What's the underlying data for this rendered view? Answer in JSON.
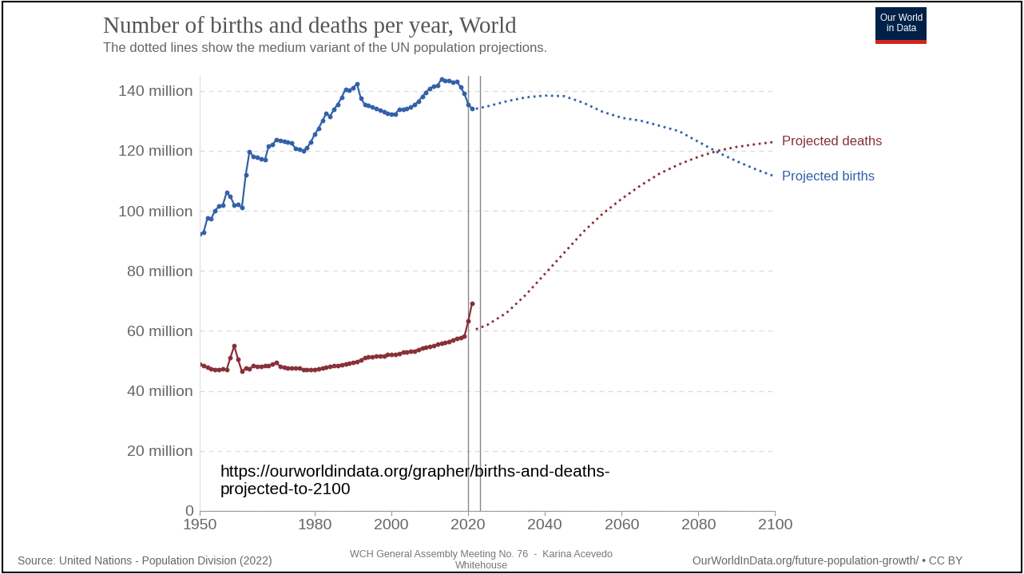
{
  "chart_data": {
    "type": "line",
    "title": "Number of births and deaths per year, World",
    "subtitle": "The dotted lines show the medium variant of the UN population projections.",
    "logo": "Our World\nin Data",
    "url_note": "https://ourworldindata.org/grapher/births-and-deaths-\nprojected-to-2100",
    "source": "Source: United Nations - Population Division (2022)",
    "credit": "WCH General Assembly Meeting No. 76  -  Karina Acevedo\nWhitehouse",
    "license": "OurWorldInData.org/future-population-growth/ • CC BY",
    "xlim": [
      1950,
      2100
    ],
    "xticks": [
      1950,
      1980,
      2000,
      2020,
      2040,
      2060,
      2080,
      2100
    ],
    "ylim": [
      0,
      145
    ],
    "yticks": [
      0,
      {
        "value": 20,
        "label": "20 million"
      },
      {
        "value": 40,
        "label": "40 million"
      },
      {
        "value": 60,
        "label": "60 million"
      },
      {
        "value": 80,
        "label": "80 million"
      },
      {
        "value": 100,
        "label": "100 million"
      },
      {
        "value": 120,
        "label": "120 million"
      },
      {
        "value": 140,
        "label": "140 million"
      }
    ],
    "grid": true,
    "reference_lines": [
      2020,
      2023
    ],
    "series": [
      {
        "color": "#3360a9",
        "line_style": "solid",
        "marker": "o",
        "x": [
          1950,
          1951,
          1952,
          1953,
          1954,
          1955,
          1956,
          1957,
          1958,
          1959,
          1960,
          1961,
          1962,
          1963,
          1964,
          1965,
          1966,
          1967,
          1968,
          1969,
          1970,
          1971,
          1972,
          1973,
          1974,
          1975,
          1976,
          1977,
          1978,
          1979,
          1980,
          1981,
          1982,
          1983,
          1984,
          1985,
          1986,
          1987,
          1988,
          1989,
          1990,
          1991,
          1992,
          1993,
          1994,
          1995,
          1996,
          1997,
          1998,
          1999,
          2000,
          2001,
          2002,
          2003,
          2004,
          2005,
          2006,
          2007,
          2008,
          2009,
          2010,
          2011,
          2012,
          2013,
          2014,
          2015,
          2016,
          2017,
          2018,
          2019,
          2020,
          2021
        ],
        "values": [
          92.2,
          92.8,
          97.5,
          97.4,
          100,
          101.5,
          101.8,
          106,
          104.8,
          102,
          102.2,
          101,
          112,
          119.8,
          118,
          117.8,
          117.3,
          117,
          121.6,
          122,
          123.8,
          123.5,
          123.2,
          123,
          122.5,
          120.7,
          120.6,
          120,
          121,
          123,
          125.5,
          127.5,
          130,
          132.5,
          131.5,
          133.8,
          135.5,
          137.8,
          140.5,
          140.2,
          141,
          142.3,
          137.5,
          135.5,
          135,
          134.5,
          134,
          133.5,
          133,
          132.5,
          132.3,
          132.3,
          133.8,
          133.8,
          134,
          134.5,
          135.3,
          136.5,
          138,
          139.5,
          140.8,
          141.5,
          141.8,
          143.8,
          143.3,
          143.5,
          142.8,
          143,
          141.3,
          139,
          135.5,
          134
        ]
      },
      {
        "color": "#883039",
        "line_style": "solid",
        "marker": "o",
        "x": [
          1950,
          1951,
          1952,
          1953,
          1954,
          1955,
          1956,
          1957,
          1958,
          1959,
          1960,
          1961,
          1962,
          1963,
          1964,
          1965,
          1966,
          1967,
          1968,
          1969,
          1970,
          1971,
          1972,
          1973,
          1974,
          1975,
          1976,
          1977,
          1978,
          1979,
          1980,
          1981,
          1982,
          1983,
          1984,
          1985,
          1986,
          1987,
          1988,
          1989,
          1990,
          1991,
          1992,
          1993,
          1994,
          1995,
          1996,
          1997,
          1998,
          1999,
          2000,
          2001,
          2002,
          2003,
          2004,
          2005,
          2006,
          2007,
          2008,
          2009,
          2010,
          2011,
          2012,
          2013,
          2014,
          2015,
          2016,
          2017,
          2018,
          2019,
          2020,
          2021
        ],
        "values": [
          48.8,
          48.3,
          47.8,
          47.4,
          47.2,
          47.1,
          47.3,
          47,
          51,
          55,
          50.5,
          46.5,
          47.5,
          47.3,
          48.3,
          48.2,
          48.2,
          48.3,
          48.5,
          48.8,
          49.5,
          48,
          47.8,
          47.7,
          47.6,
          47.5,
          47.5,
          47,
          47,
          47,
          47.2,
          47.4,
          47.6,
          47.8,
          48,
          48.3,
          48.5,
          48.7,
          49,
          49.2,
          49.5,
          49.8,
          50.3,
          51,
          51.3,
          51.3,
          51.5,
          51.5,
          51.7,
          52,
          52,
          52.2,
          52.5,
          52.8,
          53,
          53.2,
          53.3,
          53.8,
          54.2,
          54.5,
          54.8,
          55,
          55.5,
          55.8,
          56,
          56.5,
          57,
          57.5,
          57.8,
          58.2,
          63.2,
          69.2
        ]
      },
      {
        "name": "Projected births",
        "color": "#3360a9",
        "line_style": "dotted",
        "marker": "none",
        "x": [
          2022,
          2025,
          2030,
          2035,
          2040,
          2045,
          2050,
          2055,
          2060,
          2065,
          2070,
          2075,
          2080,
          2085,
          2090,
          2095,
          2100
        ],
        "values": [
          134,
          134.8,
          136.5,
          137.8,
          138.4,
          138.2,
          136,
          133,
          131,
          130,
          128.3,
          126.5,
          123,
          119.5,
          116.5,
          113.8,
          111.4
        ]
      },
      {
        "name": "Projected deaths",
        "color": "#883039",
        "line_style": "dotted",
        "marker": "none",
        "x": [
          2022,
          2025,
          2030,
          2035,
          2040,
          2045,
          2050,
          2055,
          2060,
          2065,
          2070,
          2075,
          2080,
          2085,
          2090,
          2095,
          2100
        ],
        "values": [
          60.5,
          62,
          66,
          72,
          79,
          86,
          93,
          99,
          104,
          108.5,
          112.5,
          115.5,
          118,
          120,
          121.3,
          122.2,
          123
        ]
      }
    ]
  }
}
